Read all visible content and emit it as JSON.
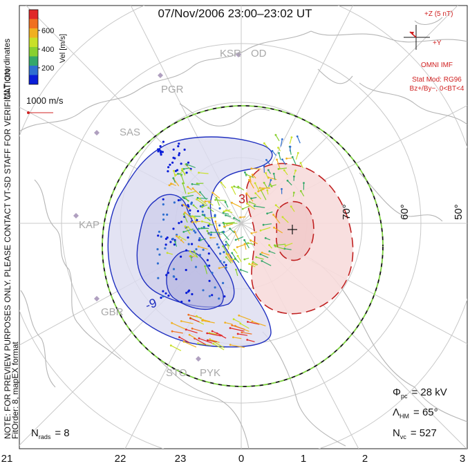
{
  "title": "07/Nov/2006 23:00–23:02 UT",
  "coordinates_label": "MLT coordinates",
  "colorbar": {
    "label": "Vel [m/s]",
    "ticks": [
      "600",
      "400",
      "200"
    ],
    "colors": [
      "#0a1ed8",
      "#2f6fd0",
      "#34a86a",
      "#88d030",
      "#c8e028",
      "#f0b020",
      "#f07020",
      "#e02828"
    ]
  },
  "velocity_scale": "1000 m/s",
  "side_note_1": "NOTE: FOR PREVIEW PURPOSES ONLY.  PLEASE CONTACT VT-SD STAFF FOR VERIFICATION.",
  "side_note_2": "FitOrder: 8, mapEX format",
  "imf": {
    "z_label": "+Z (5 nT)",
    "y_label": "+Y",
    "source": "OMNI IMF",
    "model": "Stat Mod: RG96",
    "condition": "Bz+/By−, 0<BT<4"
  },
  "latitude_labels": [
    "70°",
    "60°",
    "50°"
  ],
  "stations": [
    "KSR",
    "OD",
    "PGR",
    "SAS",
    "KAP",
    "GBR",
    "STO",
    "PYK"
  ],
  "contour_labels": [
    "3",
    "-9"
  ],
  "mlt_labels": [
    "21",
    "22",
    "23",
    "0",
    "1",
    "2",
    "3"
  ],
  "stats": {
    "phi_sym": "Φ",
    "phi_sub": "pc",
    "phi_val": "= 28 kV",
    "lambda_sym": "Λ",
    "lambda_sub": "HM",
    "lambda_val": "= 65°",
    "nvc_sym": "N",
    "nvc_sub": "vc",
    "nvc_val": "= 527",
    "nrads_sym": "N",
    "nrads_sub": "rads",
    "nrads_val": "= 8"
  }
}
